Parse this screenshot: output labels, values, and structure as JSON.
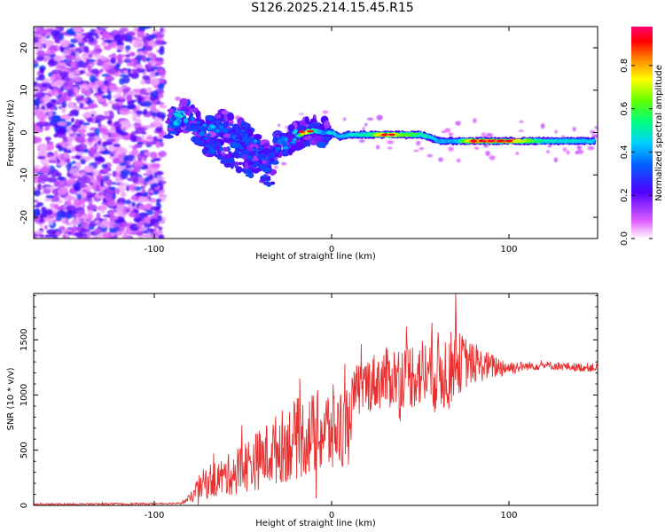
{
  "title": "S126.2025.214.15.45.R15",
  "chart_data": [
    {
      "type": "heatmap",
      "xlabel": "Height of straight line (km)",
      "ylabel": "Frequency (Hz)",
      "xlim": [
        -168,
        150
      ],
      "ylim": [
        -25,
        25
      ],
      "x_ticks": [
        -100,
        0,
        100
      ],
      "y_ticks": [
        -20,
        -10,
        0,
        10,
        20
      ],
      "colorbar": {
        "label": "Normalized spectral amplitude",
        "range": [
          0,
          0.98
        ],
        "ticks": [
          0.0,
          0.2,
          0.4,
          0.6,
          0.8
        ],
        "colormap": [
          "#ff00ff",
          "#5000ff",
          "#00a0ff",
          "#00ffa0",
          "#40ff00",
          "#ffff00",
          "#ff8000",
          "#ff0000",
          "#ff0060"
        ]
      },
      "ridge": {
        "x": [
          -92,
          -85,
          -80,
          -75,
          -70,
          -65,
          -60,
          -55,
          -50,
          -45,
          -40,
          -35,
          -30,
          -25,
          -20,
          -15,
          -10,
          -5,
          0,
          5,
          10,
          20,
          30,
          40,
          50,
          55,
          60,
          70,
          80,
          100,
          120,
          140,
          148
        ],
        "freq": [
          2,
          4,
          3.5,
          1,
          0,
          0.5,
          2,
          0,
          -1,
          -3,
          -4,
          -6,
          -3,
          -2,
          -1,
          0,
          0.5,
          0,
          0,
          -1,
          -0.5,
          -0.5,
          -0.5,
          -0.5,
          -0.5,
          -1,
          -2,
          -2,
          -2,
          -2,
          -2,
          -2,
          -2
        ],
        "amplitude": [
          0.3,
          0.35,
          0.3,
          0.25,
          0.3,
          0.3,
          0.3,
          0.25,
          0.25,
          0.3,
          0.25,
          0.2,
          0.25,
          0.3,
          0.35,
          0.9,
          0.6,
          0.4,
          0.5,
          0.45,
          0.5,
          0.55,
          0.9,
          0.7,
          0.6,
          0.5,
          0.45,
          0.45,
          0.95,
          0.9,
          0.55,
          0.5,
          0.5
        ]
      }
    },
    {
      "type": "line",
      "xlabel": "Height of straight line (km)",
      "ylabel": "SNR (10 * v/v)",
      "xlim": [
        -168,
        150
      ],
      "ylim": [
        0,
        1920
      ],
      "x_ticks": [
        -100,
        0,
        100
      ],
      "y_ticks": [
        0,
        500,
        1000,
        1500
      ],
      "color": "#e83030",
      "trend": {
        "x": [
          -168,
          -100,
          -85,
          -80,
          -75,
          -70,
          -60,
          -50,
          -40,
          -30,
          -20,
          -10,
          0,
          5,
          10,
          13,
          15,
          20,
          30,
          40,
          50,
          60,
          65,
          70,
          75,
          80,
          90,
          100,
          110,
          120,
          130,
          140,
          150
        ],
        "mean": [
          10,
          15,
          20,
          60,
          150,
          220,
          260,
          350,
          420,
          520,
          600,
          650,
          680,
          700,
          800,
          1000,
          1050,
          1100,
          1150,
          1180,
          1200,
          1200,
          1220,
          1280,
          1300,
          1280,
          1260,
          1250,
          1260,
          1270,
          1260,
          1250,
          1250
        ],
        "spread": [
          8,
          8,
          8,
          40,
          120,
          160,
          180,
          240,
          280,
          330,
          370,
          380,
          420,
          380,
          300,
          250,
          250,
          260,
          280,
          300,
          330,
          380,
          360,
          300,
          250,
          180,
          120,
          70,
          40,
          40,
          40,
          40,
          40
        ]
      }
    }
  ]
}
